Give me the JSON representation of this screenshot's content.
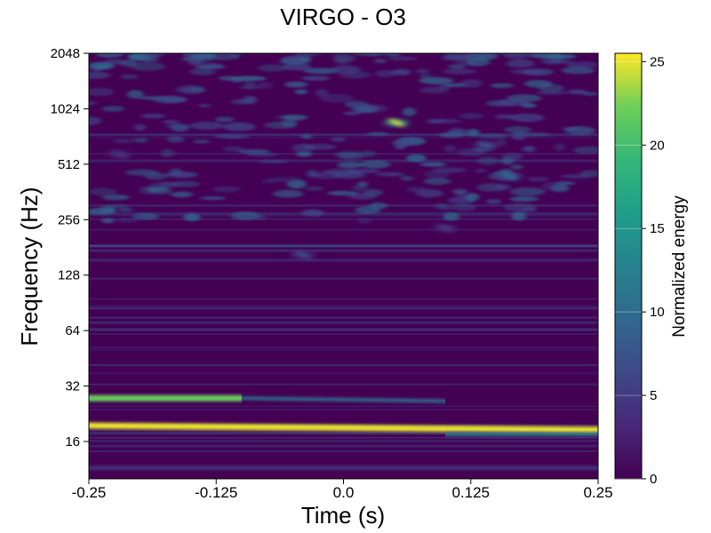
{
  "chart_data": {
    "type": "heatmap",
    "title": "VIRGO - O3",
    "xlabel": "Time (s)",
    "ylabel": "Frequency (Hz)",
    "xlim": [
      -0.25,
      0.25
    ],
    "ylim": [
      10,
      2048
    ],
    "yscale": "log2",
    "x_ticks": [
      -0.25,
      -0.125,
      0.0,
      0.125,
      0.25
    ],
    "x_tick_labels": [
      "-0.25",
      "-0.125",
      "0.0",
      "0.125",
      "0.25"
    ],
    "y_ticks": [
      16,
      32,
      64,
      128,
      256,
      512,
      1024,
      2048
    ],
    "y_tick_labels": [
      "16",
      "32",
      "64",
      "128",
      "256",
      "512",
      "1024",
      "2048"
    ],
    "colorbar": {
      "label": "Normalized energy",
      "colormap": "viridis",
      "range": [
        0,
        25.5
      ],
      "ticks": [
        0,
        5,
        10,
        15,
        20,
        25
      ],
      "tick_labels": [
        "0",
        "5",
        "10",
        "15",
        "20",
        "25"
      ]
    },
    "features": [
      {
        "kind": "band",
        "x_start": -0.25,
        "x_end": 0.25,
        "freq_start": 19.5,
        "freq_end": 18.5,
        "energy": 25
      },
      {
        "kind": "band",
        "x_start": -0.25,
        "x_end": -0.1,
        "freq_start": 27.5,
        "freq_end": 27.5,
        "energy": 22
      },
      {
        "kind": "band",
        "x_start": -0.1,
        "x_end": 0.1,
        "freq_start": 27.5,
        "freq_end": 26.5,
        "energy": 10
      },
      {
        "kind": "band",
        "x_start": 0.1,
        "x_end": 0.25,
        "freq_start": 17.5,
        "freq_end": 17.5,
        "energy": 12
      },
      {
        "kind": "band",
        "x_start": -0.25,
        "x_end": 0.25,
        "freq_start": 11.5,
        "freq_end": 11.5,
        "energy": 5
      },
      {
        "kind": "blob",
        "x": 0.052,
        "freq": 860,
        "energy": 25
      },
      {
        "kind": "blob",
        "x": 0.163,
        "freq": 440,
        "energy": 11
      },
      {
        "kind": "blob",
        "x": 0.14,
        "freq": 650,
        "energy": 8
      },
      {
        "kind": "blob",
        "x": -0.04,
        "freq": 165,
        "energy": 7
      },
      {
        "kind": "blob",
        "x": -0.22,
        "freq": 580,
        "energy": 5
      },
      {
        "kind": "blob",
        "x": 0.1,
        "freq": 230,
        "energy": 5
      }
    ]
  }
}
